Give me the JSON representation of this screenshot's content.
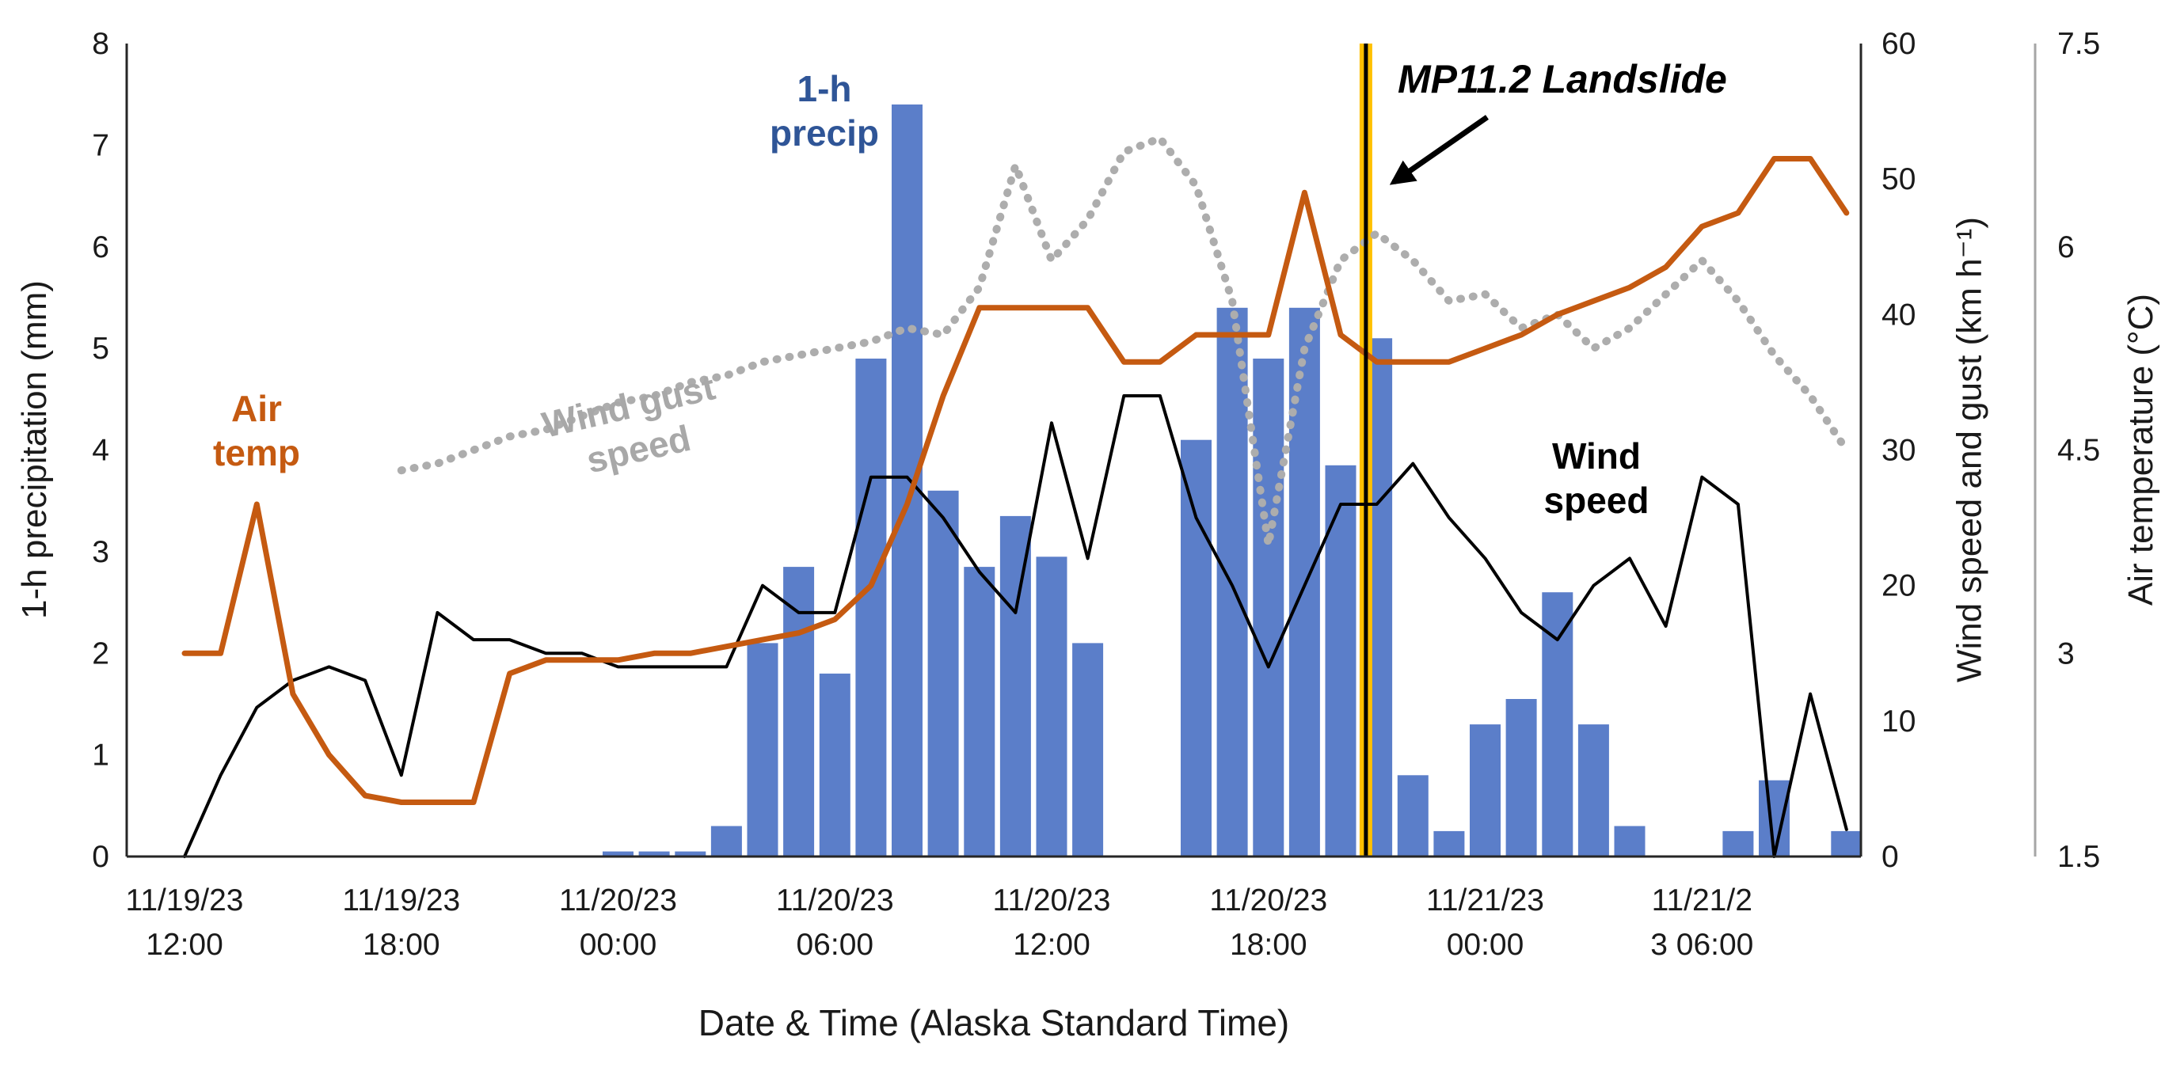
{
  "chart_data": {
    "type": "combo",
    "title": "",
    "xlabel": "Date & Time (Alaska Standard Time)",
    "x_start": "11/19/23 12:00",
    "x_step_hours": 1,
    "x_ticks": [
      {
        "hour": 0,
        "line1": "11/19/23",
        "line2": "12:00"
      },
      {
        "hour": 6,
        "line1": "11/19/23",
        "line2": "18:00"
      },
      {
        "hour": 12,
        "line1": "11/20/23",
        "line2": "00:00"
      },
      {
        "hour": 18,
        "line1": "11/20/23",
        "line2": "06:00"
      },
      {
        "hour": 24,
        "line1": "11/20/23",
        "line2": "12:00"
      },
      {
        "hour": 30,
        "line1": "11/20/23",
        "line2": "18:00"
      },
      {
        "hour": 36,
        "line1": "11/21/23",
        "line2": "00:00"
      },
      {
        "hour": 42,
        "line1": "11/21/2",
        "line2": "3 06:00"
      }
    ],
    "axes": {
      "left": {
        "label": "1-h precipitation (mm)",
        "range": [
          0,
          8
        ],
        "ticks": [
          0,
          1,
          2,
          3,
          4,
          5,
          6,
          7,
          8
        ]
      },
      "right_wind": {
        "label": "Wind speed and gust (km h⁻¹)",
        "range": [
          0,
          60
        ],
        "ticks": [
          0,
          10,
          20,
          30,
          40,
          50,
          60
        ]
      },
      "right_temp": {
        "label": "Air temperature (°C)",
        "range": [
          1.5,
          7.5
        ],
        "ticks": [
          1.5,
          3,
          4.5,
          6,
          7.5
        ]
      }
    },
    "series": [
      {
        "id": "precip",
        "name": "1-h precip",
        "type": "bar",
        "axis": "left",
        "color": "#5B7EC9",
        "values": [
          0,
          0,
          0,
          0,
          0,
          0,
          0,
          0,
          0,
          0,
          0,
          0,
          0.05,
          0.05,
          0.05,
          0.3,
          2.1,
          2.85,
          1.8,
          4.9,
          7.4,
          3.6,
          2.85,
          3.35,
          2.95,
          2.1,
          0,
          0,
          4.1,
          5.4,
          4.9,
          5.4,
          3.85,
          5.1,
          0.8,
          0.25,
          1.3,
          1.55,
          2.6,
          1.3,
          0.3,
          0,
          0,
          0.25,
          0.75,
          0,
          0.25
        ]
      },
      {
        "id": "wind_gust",
        "name": "Wind gust speed",
        "type": "line",
        "style": "dotted",
        "axis": "right_wind",
        "color": "#ADADAD",
        "values": [
          null,
          null,
          null,
          null,
          null,
          null,
          28.5,
          29,
          30,
          31,
          31.5,
          32.5,
          33.5,
          34,
          35,
          35.5,
          36.5,
          37,
          37.5,
          38,
          39,
          38.5,
          42,
          51,
          44,
          47,
          52,
          53,
          49.5,
          41,
          23,
          37.5,
          44,
          46,
          44,
          41,
          41.5,
          39,
          40,
          37.5,
          39,
          41.5,
          44,
          41,
          37,
          34,
          30
        ]
      },
      {
        "id": "wind_speed",
        "name": "Wind speed",
        "type": "line",
        "style": "solid",
        "axis": "right_wind",
        "color": "#000000",
        "values": [
          0,
          6,
          11,
          13,
          14,
          13,
          6,
          18,
          16,
          16,
          15,
          15,
          14,
          14,
          14,
          14,
          20,
          18,
          18,
          28,
          28,
          25,
          21,
          18,
          32,
          22,
          34,
          34,
          25,
          20,
          14,
          20,
          26,
          26,
          29,
          25,
          22,
          18,
          16,
          20,
          22,
          17,
          28,
          26,
          0,
          12,
          2
        ]
      },
      {
        "id": "air_temp",
        "name": "Air temp",
        "type": "line",
        "style": "solid",
        "axis": "right_temp",
        "color": "#C55A11",
        "values": [
          3.0,
          3.0,
          4.1,
          2.7,
          2.25,
          1.95,
          1.9,
          1.9,
          1.9,
          2.85,
          2.95,
          2.95,
          2.95,
          3.0,
          3.0,
          3.05,
          3.1,
          3.15,
          3.25,
          3.5,
          4.1,
          4.9,
          5.55,
          5.55,
          5.55,
          5.55,
          5.15,
          5.15,
          5.35,
          5.35,
          5.35,
          6.4,
          5.35,
          5.15,
          5.15,
          5.15,
          5.25,
          5.35,
          5.5,
          5.6,
          5.7,
          5.85,
          6.15,
          6.25,
          6.65,
          6.65,
          6.25
        ]
      }
    ],
    "event_marker": {
      "label": "MP11.2 Landslide",
      "x_hour": 32.7,
      "band_color": "#FFC000",
      "line_color": "#000000"
    },
    "annotations": {
      "precip": "1-h\nprecip",
      "air_temp": "Air\ntemp",
      "wind_gust": "Wind gust\nspeed",
      "wind_speed": "Wind\nspeed",
      "landslide": "MP11.2 Landslide"
    }
  }
}
